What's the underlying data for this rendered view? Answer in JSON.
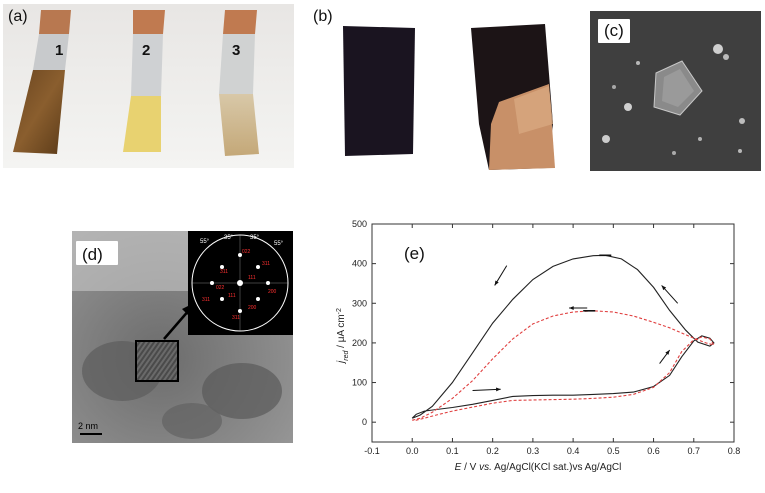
{
  "panels": {
    "a": {
      "label": "(a)",
      "strip_labels": [
        "1",
        "2",
        "3"
      ]
    },
    "b": {
      "label": "(b)"
    },
    "c": {
      "label": "(c)"
    },
    "d": {
      "label": "(d)",
      "scale_bar": "2 nm",
      "fft_angles": [
        "55°",
        "35°",
        "35°",
        "55°"
      ],
      "fft_indices": [
        "022",
        "311",
        "111",
        "200",
        "311",
        "022",
        "111",
        "311",
        "200",
        "311"
      ]
    },
    "e": {
      "label": "(e)"
    }
  },
  "chart_data": {
    "type": "line",
    "xlabel_prefix": "E",
    "xlabel_main": " / V ",
    "xlabel_vs": "vs.",
    "xlabel_rest": " Ag/AgCl(KCl sat.)vs Ag/AgCl",
    "ylabel_j": "j",
    "ylabel_sub": "red",
    "ylabel_unit": " / μA cm",
    "ylabel_sup": "-2",
    "xlim": [
      -0.1,
      0.8
    ],
    "ylim": [
      -50,
      500
    ],
    "x_ticks": [
      "-0.1",
      "0.0",
      "0.1",
      "0.2",
      "0.3",
      "0.4",
      "0.5",
      "0.6",
      "0.7",
      "0.8"
    ],
    "y_ticks": [
      "0",
      "100",
      "200",
      "300",
      "400",
      "500"
    ],
    "series": [
      {
        "style": "solid",
        "color": "#222222",
        "x": [
          0.0,
          0.02,
          0.05,
          0.1,
          0.15,
          0.2,
          0.25,
          0.3,
          0.35,
          0.4,
          0.45,
          0.48,
          0.52,
          0.56,
          0.6,
          0.64,
          0.68,
          0.71,
          0.74,
          0.75,
          0.74,
          0.72,
          0.7,
          0.67,
          0.64,
          0.6,
          0.55,
          0.5,
          0.45,
          0.4,
          0.35,
          0.3,
          0.25,
          0.2,
          0.15,
          0.1,
          0.06,
          0.03,
          0.01,
          0.0
        ],
        "y": [
          10,
          18,
          40,
          100,
          175,
          250,
          310,
          360,
          393,
          412,
          420,
          421,
          412,
          385,
          340,
          282,
          232,
          202,
          192,
          200,
          212,
          218,
          205,
          165,
          118,
          90,
          76,
          72,
          70,
          68,
          68,
          67,
          65,
          55,
          45,
          37,
          32,
          28,
          20,
          10
        ]
      },
      {
        "style": "dashed",
        "color": "#e04040",
        "x": [
          0.0,
          0.02,
          0.05,
          0.1,
          0.15,
          0.2,
          0.25,
          0.3,
          0.35,
          0.4,
          0.45,
          0.5,
          0.55,
          0.6,
          0.64,
          0.67,
          0.7,
          0.73,
          0.75,
          0.74,
          0.72,
          0.7,
          0.67,
          0.64,
          0.6,
          0.55,
          0.5,
          0.45,
          0.4,
          0.35,
          0.3,
          0.25,
          0.2,
          0.15,
          0.1,
          0.06,
          0.03,
          0.01,
          0.0
        ],
        "y": [
          5,
          10,
          25,
          60,
          105,
          160,
          210,
          248,
          268,
          278,
          281,
          278,
          268,
          252,
          238,
          225,
          212,
          200,
          195,
          210,
          215,
          208,
          178,
          125,
          88,
          70,
          63,
          60,
          58,
          57,
          56,
          55,
          48,
          38,
          28,
          18,
          10,
          5,
          5
        ]
      }
    ],
    "peak_marks": [
      {
        "x": 0.48,
        "y": 421
      },
      {
        "x": 0.44,
        "y": 281
      }
    ]
  }
}
